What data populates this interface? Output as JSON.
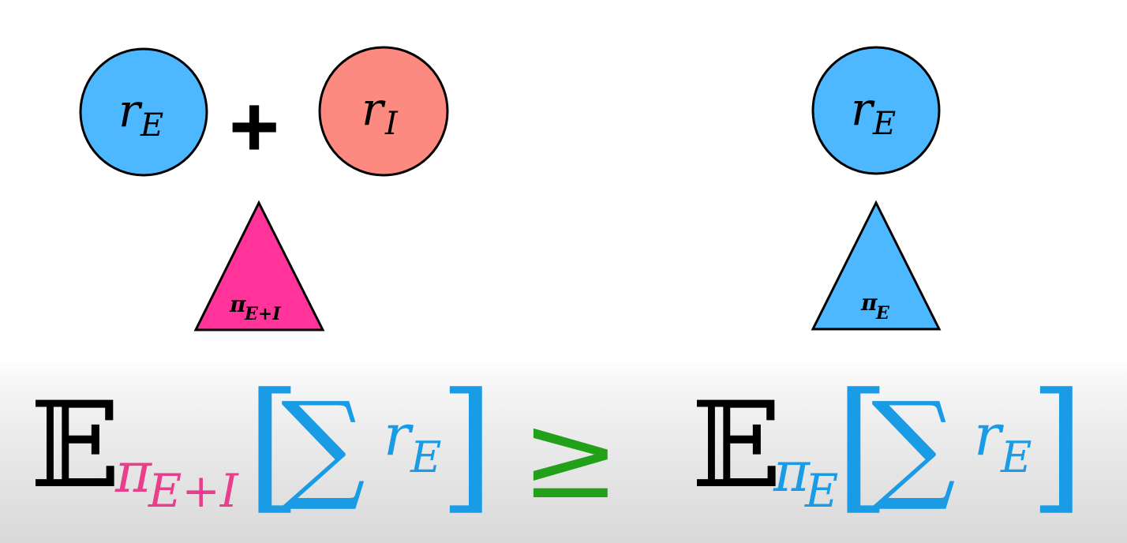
{
  "left_panel": {
    "circle_1": {
      "label": "r",
      "sub": "E",
      "color": "#4db8ff"
    },
    "plus": "+",
    "circle_2": {
      "label": "r",
      "sub": "I",
      "color": "#fd8a80"
    },
    "triangle": {
      "label": "π",
      "sub": "E+I",
      "color": "#ff3399"
    }
  },
  "right_panel": {
    "circle": {
      "label": "r",
      "sub": "E",
      "color": "#4db8ff"
    },
    "triangle": {
      "label": "π",
      "sub": "E",
      "color": "#4db8ff"
    }
  },
  "equation": {
    "lhs": {
      "expectation": "𝔼",
      "policy": "π",
      "policy_sub": "E+I",
      "policy_color": "#e83e8c",
      "bracket_open": "[",
      "sum": "∑",
      "reward": "r",
      "reward_sub": "E",
      "bracket_close": "]",
      "bracket_color": "#1a9be6"
    },
    "relation": "≥",
    "relation_color": "#22a01a",
    "rhs": {
      "expectation": "𝔼",
      "policy": "π",
      "policy_sub": "E",
      "policy_color": "#1a9be6",
      "bracket_open": "[",
      "sum": "∑",
      "reward": "r",
      "reward_sub": "E",
      "bracket_close": "]",
      "bracket_color": "#1a9be6"
    }
  }
}
